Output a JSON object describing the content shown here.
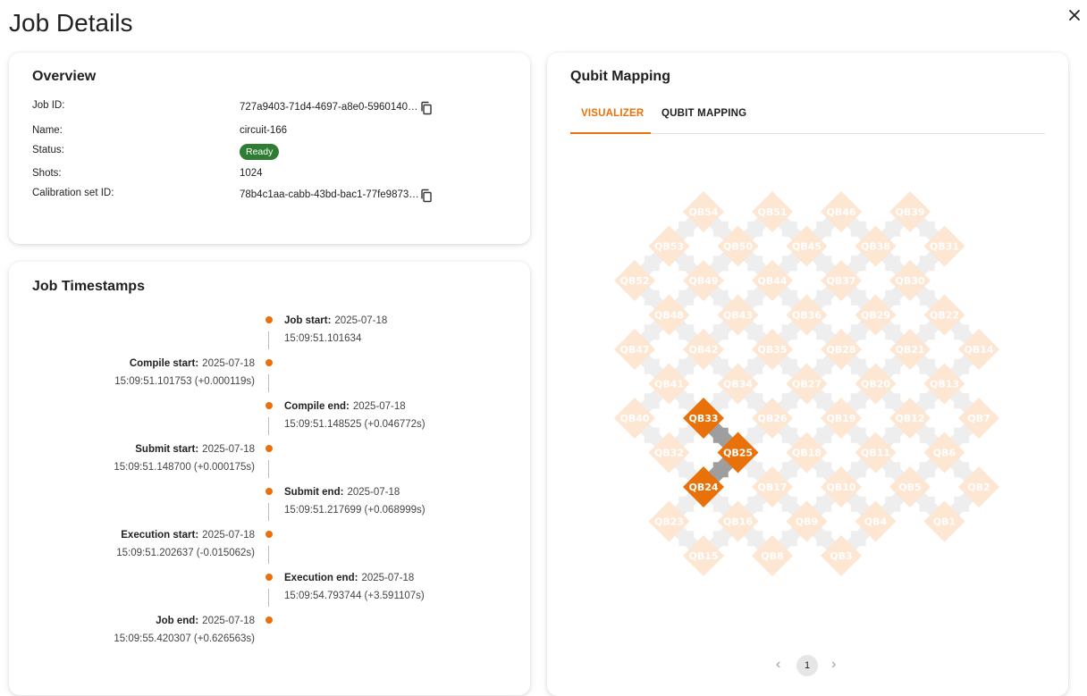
{
  "page": {
    "title": "Job Details"
  },
  "overview": {
    "title": "Overview",
    "fields": [
      {
        "label": "Job ID:",
        "value": "727a9403-71d4-4697-a8e0-5960140…"
      },
      {
        "label": "Name:",
        "value": "circuit-166"
      },
      {
        "label": "Status:",
        "value": "Ready"
      },
      {
        "label": "Shots:",
        "value": "1024"
      },
      {
        "label": "Calibration set ID:",
        "value": "78b4c1aa-cabb-43bd-bac1-77fe9873…"
      }
    ]
  },
  "timestamps": {
    "title": "Job Timestamps",
    "events": [
      {
        "label": "Job start:",
        "date": "2025-07-18",
        "time": "15:09:51.101634",
        "side": "right"
      },
      {
        "label": "Compile start:",
        "date": "2025-07-18",
        "time": "15:09:51.101753 (+0.000119s)",
        "side": "left"
      },
      {
        "label": "Compile end:",
        "date": "2025-07-18",
        "time": "15:09:51.148525 (+0.046772s)",
        "side": "right"
      },
      {
        "label": "Submit start:",
        "date": "2025-07-18",
        "time": "15:09:51.148700 (+0.000175s)",
        "side": "left"
      },
      {
        "label": "Submit end:",
        "date": "2025-07-18",
        "time": "15:09:51.217699 (+0.068999s)",
        "side": "right"
      },
      {
        "label": "Execution start:",
        "date": "2025-07-18",
        "time": "15:09:51.202637 (-0.015062s)",
        "side": "left"
      },
      {
        "label": "Execution end:",
        "date": "2025-07-18",
        "time": "15:09:54.793744 (+3.591107s)",
        "side": "right"
      },
      {
        "label": "Job end:",
        "date": "2025-07-18",
        "time": "15:09:55.420307 (+0.626563s)",
        "side": "left"
      }
    ]
  },
  "qubit_mapping": {
    "title": "Qubit Mapping",
    "tabs": [
      {
        "label": "VISUALIZER",
        "active": true
      },
      {
        "label": "QUBIT MAPPING",
        "active": false
      }
    ],
    "rows": [
      [
        "QB54",
        "QB51",
        "QB46",
        "QB39"
      ],
      [
        "QB53",
        "QB50",
        "QB45",
        "QB38",
        "QB31"
      ],
      [
        "QB52",
        "QB49",
        "QB44",
        "QB37",
        "QB30"
      ],
      [
        "QB48",
        "QB43",
        "QB36",
        "QB29",
        "QB22"
      ],
      [
        "QB47",
        "QB42",
        "QB35",
        "QB28",
        "QB21",
        "QB14"
      ],
      [
        "QB41",
        "QB34",
        "QB27",
        "QB20",
        "QB13"
      ],
      [
        "QB40",
        "QB33",
        "QB26",
        "QB19",
        "QB12",
        "QB7"
      ],
      [
        "QB32",
        "QB25",
        "QB18",
        "QB11",
        "QB6"
      ],
      [
        "QB24",
        "QB17",
        "QB10",
        "QB5",
        "QB2"
      ],
      [
        "QB23",
        "QB16",
        "QB9",
        "QB4",
        "QB1"
      ],
      [
        "QB15",
        "QB8",
        "QB3"
      ]
    ],
    "highlighted": [
      "QB33",
      "QB25",
      "QB24"
    ],
    "colors": {
      "active": "#e8710a",
      "inactive": "#fde6d2",
      "coupler": "#eeeeee",
      "coupler_active": "#9e9e9e"
    },
    "pagination": {
      "prev": "‹",
      "page": "1",
      "next": "›"
    }
  }
}
